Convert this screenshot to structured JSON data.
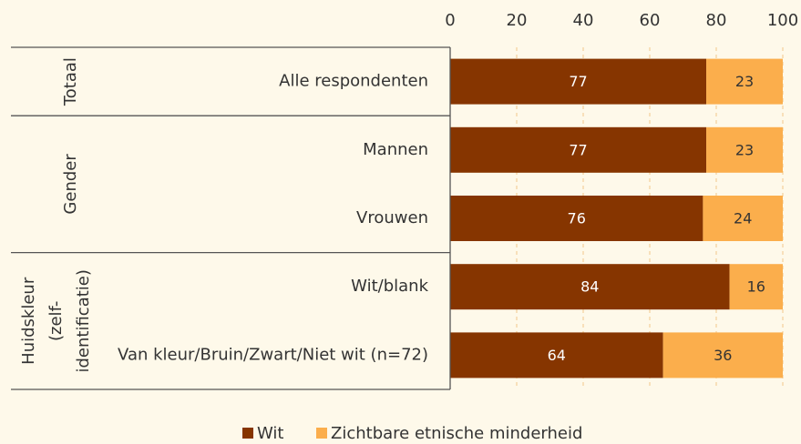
{
  "chart_data": {
    "type": "stacked-bar-horizontal",
    "groups": [
      {
        "label": [
          "Totaal"
        ],
        "categories": [
          "Alle respondenten"
        ]
      },
      {
        "label": [
          "Gender"
        ],
        "categories": [
          "Mannen",
          "Vrouwen"
        ]
      },
      {
        "label": [
          "Huidskleur",
          "(zelf-",
          "identificatie)"
        ],
        "categories": [
          "Wit/blank",
          "Van kleur/Bruin/Zwart/Niet wit (n=72)"
        ]
      }
    ],
    "series": [
      {
        "name": "Wit",
        "color": "#863500",
        "values": [
          77,
          77,
          76,
          84,
          64
        ]
      },
      {
        "name": "Zichtbare etnische minderheid",
        "color": "#fbae4c",
        "values": [
          23,
          23,
          24,
          16,
          36
        ]
      }
    ],
    "xlim": [
      0,
      100
    ],
    "xticks": [
      0,
      20,
      40,
      60,
      80,
      100
    ],
    "grid": true,
    "legend": "bottom"
  }
}
